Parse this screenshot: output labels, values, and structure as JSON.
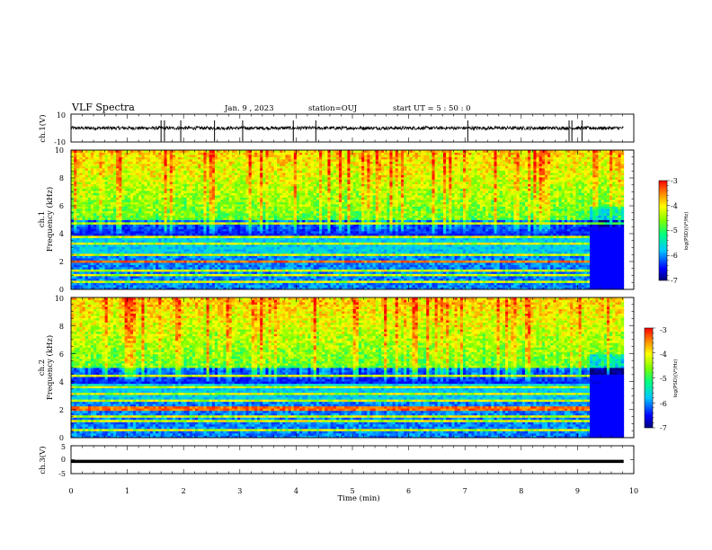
{
  "header": {
    "title": "VLF Spectra",
    "date": "Jan. 9 , 2023",
    "station": "station=OUJ",
    "start": "start UT =  5 : 50 : 0"
  },
  "chart_data": [
    {
      "type": "line",
      "name": "ch1-waveform",
      "ylabel": "ch.1(V)",
      "ylim": [
        -10,
        10
      ],
      "yticks": [
        "10",
        "-10"
      ],
      "x_range_min": [
        0,
        9.82
      ],
      "baseline": 0,
      "noise_amplitude": 1.2,
      "spikes_min": [
        1.6,
        1.66,
        1.95,
        2.55,
        3.05,
        3.95,
        4.35,
        7.05,
        8.85,
        8.9,
        9.08
      ]
    },
    {
      "type": "heatmap",
      "name": "ch1-spectrogram",
      "ylabel_line1": "ch.1",
      "ylabel_line2": "Frequency (kHz)",
      "ylim": [
        0,
        10
      ],
      "yticks": [
        "0",
        "2",
        "4",
        "6",
        "8",
        "10"
      ],
      "x_range_min": [
        0,
        9.82
      ],
      "colorbar": {
        "label": "log(PSD)(V²/Hz)",
        "range": [
          -7,
          -3
        ],
        "ticks": [
          "-3",
          "-4",
          "-5",
          "-6",
          "-7"
        ]
      },
      "bands_khz": [
        0.6,
        1.0,
        1.4,
        2.0,
        2.5,
        3.3,
        3.8,
        4.7
      ]
    },
    {
      "type": "heatmap",
      "name": "ch2-spectrogram",
      "ylabel_line1": "ch.2",
      "ylabel_line2": "Frequency (kHz)",
      "ylim": [
        0,
        10
      ],
      "yticks": [
        "0",
        "2",
        "4",
        "6",
        "8",
        "10"
      ],
      "x_range_min": [
        0,
        9.82
      ],
      "colorbar": {
        "label": "log(PSD)(V²/Hz)",
        "range": [
          -7,
          -3
        ],
        "ticks": [
          "-3",
          "-4",
          "-5",
          "-6",
          "-7"
        ]
      },
      "bands_khz": [
        0.6,
        1.2,
        1.6,
        2.1,
        2.6,
        3.1,
        3.7,
        4.4
      ]
    },
    {
      "type": "line",
      "name": "ch3-waveform",
      "ylabel": "ch.3(V)",
      "ylim": [
        -5,
        5
      ],
      "yticks": [
        "5",
        "0",
        "-5"
      ],
      "x_range_min": [
        0,
        9.82
      ],
      "value": -0.6,
      "xlabel": "Time (min)",
      "xlim": [
        0,
        10
      ],
      "xticks": [
        "0",
        "1",
        "2",
        "3",
        "4",
        "5",
        "6",
        "7",
        "8",
        "9",
        "10"
      ]
    }
  ],
  "colors": {
    "frame": "#000000",
    "trace": "#000000"
  }
}
